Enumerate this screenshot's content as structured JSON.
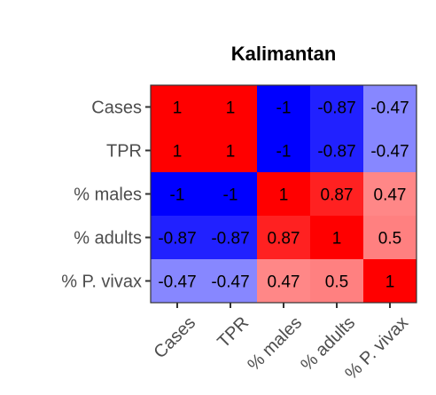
{
  "chart_data": {
    "type": "heatmap",
    "title": "Kalimantan",
    "xlabel": "",
    "ylabel": "",
    "row_labels": [
      "Cases",
      "TPR",
      "% males",
      "% adults",
      "% P. vivax"
    ],
    "col_labels": [
      "Cases",
      "TPR",
      "% males",
      "% adults",
      "% P. vivax"
    ],
    "values": [
      [
        1,
        1,
        -1,
        -0.87,
        -0.47
      ],
      [
        1,
        1,
        -1,
        -0.87,
        -0.47
      ],
      [
        -1,
        -1,
        1,
        0.87,
        0.47
      ],
      [
        -0.87,
        -0.87,
        0.87,
        1,
        0.5
      ],
      [
        -0.47,
        -0.47,
        0.47,
        0.5,
        1
      ]
    ],
    "value_range": [
      -1,
      1
    ],
    "colors": {
      "negative": "#0000ff",
      "neutral": "#ffffff",
      "positive": "#ff0000"
    },
    "legend": "none",
    "grid": false
  }
}
